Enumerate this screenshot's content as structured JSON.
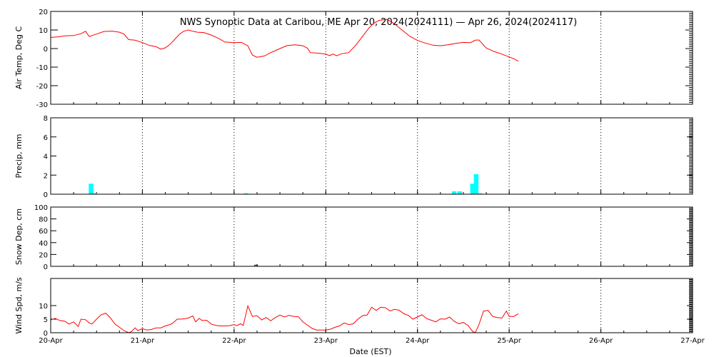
{
  "chart_data": {
    "type": "multi-panel",
    "title": "NWS Synoptic Data at Caribou, ME   Apr 20, 2024(2024111) — Apr 26, 2024(2024117)",
    "xlabel": "Date (EST)",
    "x_ticks": [
      "20-Apr",
      "21-Apr",
      "22-Apr",
      "23-Apr",
      "24-Apr",
      "25-Apr",
      "26-Apr",
      "27-Apr"
    ],
    "xlim": [
      0,
      7
    ],
    "x_unit": "days since 20-Apr 00:00 EST",
    "grid": "dotted vertical at day boundaries",
    "colors": {
      "line": "#ff0000",
      "precip": "#00ffff",
      "snow": "#00008b",
      "axis": "#000000",
      "grid": "#000000"
    },
    "panels": [
      {
        "id": "air-temp",
        "type": "line",
        "ylabel": "Air Temp, Deg C",
        "ylim": [
          -30,
          20
        ],
        "y_ticks": [
          20,
          10,
          0,
          -10,
          -20,
          -30
        ],
        "series": [
          {
            "color": "#ff0000",
            "points": [
              [
                0.0,
                6.0
              ],
              [
                0.08,
                6.3
              ],
              [
                0.15,
                6.8
              ],
              [
                0.25,
                7.0
              ],
              [
                0.33,
                8.0
              ],
              [
                0.38,
                9.3
              ],
              [
                0.42,
                6.5
              ],
              [
                0.5,
                7.8
              ],
              [
                0.58,
                9.2
              ],
              [
                0.67,
                9.4
              ],
              [
                0.75,
                8.8
              ],
              [
                0.8,
                7.8
              ],
              [
                0.85,
                4.8
              ],
              [
                0.92,
                4.5
              ],
              [
                1.0,
                3.2
              ],
              [
                1.08,
                1.6
              ],
              [
                1.15,
                1.0
              ],
              [
                1.2,
                -0.3
              ],
              [
                1.25,
                0.4
              ],
              [
                1.3,
                2.2
              ],
              [
                1.35,
                4.8
              ],
              [
                1.4,
                7.5
              ],
              [
                1.45,
                9.3
              ],
              [
                1.5,
                10.0
              ],
              [
                1.55,
                9.3
              ],
              [
                1.6,
                8.8
              ],
              [
                1.67,
                8.6
              ],
              [
                1.75,
                7.3
              ],
              [
                1.83,
                5.5
              ],
              [
                1.9,
                3.5
              ],
              [
                2.0,
                3.2
              ],
              [
                2.08,
                3.3
              ],
              [
                2.15,
                1.5
              ],
              [
                2.2,
                -3.5
              ],
              [
                2.25,
                -4.7
              ],
              [
                2.33,
                -4.0
              ],
              [
                2.4,
                -2.2
              ],
              [
                2.5,
                0.0
              ],
              [
                2.58,
                1.6
              ],
              [
                2.67,
                2.0
              ],
              [
                2.75,
                1.5
              ],
              [
                2.8,
                0.2
              ],
              [
                2.83,
                -2.2
              ],
              [
                2.92,
                -2.5
              ],
              [
                3.0,
                -3.0
              ],
              [
                3.04,
                -3.8
              ],
              [
                3.08,
                -3.0
              ],
              [
                3.12,
                -3.9
              ],
              [
                3.17,
                -2.8
              ],
              [
                3.25,
                -2.2
              ],
              [
                3.33,
                2.0
              ],
              [
                3.4,
                6.5
              ],
              [
                3.47,
                11.0
              ],
              [
                3.52,
                13.5
              ],
              [
                3.58,
                15.2
              ],
              [
                3.67,
                15.7
              ],
              [
                3.75,
                13.3
              ],
              [
                3.83,
                10.0
              ],
              [
                3.92,
                6.5
              ],
              [
                4.0,
                4.4
              ],
              [
                4.08,
                3.0
              ],
              [
                4.17,
                1.8
              ],
              [
                4.25,
                1.5
              ],
              [
                4.33,
                2.0
              ],
              [
                4.42,
                2.8
              ],
              [
                4.5,
                3.3
              ],
              [
                4.58,
                3.2
              ],
              [
                4.63,
                4.5
              ],
              [
                4.67,
                4.6
              ],
              [
                4.7,
                3.0
              ],
              [
                4.75,
                0.3
              ],
              [
                4.83,
                -1.5
              ],
              [
                4.92,
                -3.0
              ],
              [
                5.0,
                -4.5
              ],
              [
                5.05,
                -5.5
              ],
              [
                5.1,
                -6.8
              ]
            ]
          }
        ]
      },
      {
        "id": "precip",
        "type": "bar",
        "ylabel": "Precip, mm",
        "ylim": [
          0,
          8
        ],
        "y_ticks": [
          8,
          6,
          4,
          2,
          0
        ],
        "bar_width": 0.05,
        "bars": [
          [
            0.44,
            1.1
          ],
          [
            0.48,
            0.1
          ],
          [
            2.13,
            0.1
          ],
          [
            4.4,
            0.3
          ],
          [
            4.46,
            0.3
          ],
          [
            4.6,
            1.1
          ],
          [
            4.64,
            2.1
          ],
          [
            4.68,
            0.1
          ]
        ]
      },
      {
        "id": "snow-depth",
        "type": "bar",
        "ylabel": "Snow Dep, cm",
        "ylim": [
          0,
          100
        ],
        "y_ticks": [
          100,
          80,
          60,
          40,
          20,
          0
        ],
        "bar_width": 0.03,
        "bars": [
          [
            2.24,
            2
          ]
        ]
      },
      {
        "id": "wind-speed",
        "type": "line",
        "ylabel": "Wind Spd, m/s",
        "ylim": [
          0,
          20
        ],
        "y_ticks": [
          10,
          5,
          0
        ],
        "series": [
          {
            "color": "#ff0000",
            "points": [
              [
                0.0,
                4.7
              ],
              [
                0.05,
                5.3
              ],
              [
                0.1,
                4.5
              ],
              [
                0.15,
                4.3
              ],
              [
                0.2,
                3.2
              ],
              [
                0.25,
                4.0
              ],
              [
                0.3,
                2.3
              ],
              [
                0.33,
                5.0
              ],
              [
                0.38,
                4.8
              ],
              [
                0.42,
                3.6
              ],
              [
                0.45,
                3.2
              ],
              [
                0.5,
                5.0
              ],
              [
                0.55,
                6.6
              ],
              [
                0.6,
                7.2
              ],
              [
                0.65,
                5.5
              ],
              [
                0.7,
                3.2
              ],
              [
                0.75,
                2.0
              ],
              [
                0.8,
                0.8
              ],
              [
                0.85,
                0.0
              ],
              [
                0.88,
                0.4
              ],
              [
                0.92,
                1.8
              ],
              [
                0.95,
                0.8
              ],
              [
                1.0,
                1.5
              ],
              [
                1.05,
                1.0
              ],
              [
                1.1,
                1.2
              ],
              [
                1.15,
                1.8
              ],
              [
                1.2,
                1.8
              ],
              [
                1.25,
                2.5
              ],
              [
                1.3,
                3.0
              ],
              [
                1.33,
                3.5
              ],
              [
                1.38,
                5.0
              ],
              [
                1.42,
                5.0
              ],
              [
                1.47,
                5.2
              ],
              [
                1.5,
                5.4
              ],
              [
                1.55,
                6.2
              ],
              [
                1.58,
                4.0
              ],
              [
                1.62,
                5.3
              ],
              [
                1.65,
                4.5
              ],
              [
                1.7,
                4.6
              ],
              [
                1.75,
                3.2
              ],
              [
                1.8,
                2.7
              ],
              [
                1.85,
                2.5
              ],
              [
                1.9,
                2.5
              ],
              [
                1.95,
                2.6
              ],
              [
                2.0,
                3.0
              ],
              [
                2.03,
                2.6
              ],
              [
                2.07,
                3.3
              ],
              [
                2.1,
                2.7
              ],
              [
                2.15,
                9.9
              ],
              [
                2.2,
                6.0
              ],
              [
                2.25,
                6.3
              ],
              [
                2.3,
                4.7
              ],
              [
                2.35,
                5.6
              ],
              [
                2.4,
                4.4
              ],
              [
                2.45,
                5.6
              ],
              [
                2.5,
                6.5
              ],
              [
                2.55,
                5.8
              ],
              [
                2.6,
                6.4
              ],
              [
                2.65,
                6.0
              ],
              [
                2.7,
                5.9
              ],
              [
                2.75,
                4.0
              ],
              [
                2.8,
                2.8
              ],
              [
                2.85,
                1.6
              ],
              [
                2.9,
                1.0
              ],
              [
                2.95,
                1.0
              ],
              [
                3.0,
                1.0
              ],
              [
                3.05,
                1.3
              ],
              [
                3.1,
                2.0
              ],
              [
                3.15,
                2.5
              ],
              [
                3.2,
                3.6
              ],
              [
                3.25,
                3.0
              ],
              [
                3.3,
                3.3
              ],
              [
                3.35,
                5.0
              ],
              [
                3.4,
                6.3
              ],
              [
                3.45,
                6.5
              ],
              [
                3.5,
                9.4
              ],
              [
                3.55,
                8.2
              ],
              [
                3.6,
                9.4
              ],
              [
                3.65,
                9.2
              ],
              [
                3.7,
                8.0
              ],
              [
                3.75,
                8.6
              ],
              [
                3.8,
                8.3
              ],
              [
                3.85,
                7.0
              ],
              [
                3.9,
                6.4
              ],
              [
                3.95,
                5.0
              ],
              [
                4.0,
                5.8
              ],
              [
                4.05,
                6.6
              ],
              [
                4.1,
                5.2
              ],
              [
                4.15,
                4.6
              ],
              [
                4.2,
                4.0
              ],
              [
                4.25,
                5.1
              ],
              [
                4.3,
                5.0
              ],
              [
                4.35,
                5.8
              ],
              [
                4.4,
                4.2
              ],
              [
                4.45,
                3.3
              ],
              [
                4.5,
                3.8
              ],
              [
                4.55,
                2.7
              ],
              [
                4.6,
                0.5
              ],
              [
                4.63,
                0.0
              ],
              [
                4.67,
                3.0
              ],
              [
                4.72,
                8.0
              ],
              [
                4.77,
                8.2
              ],
              [
                4.82,
                6.0
              ],
              [
                4.87,
                5.6
              ],
              [
                4.92,
                5.4
              ],
              [
                4.97,
                8.0
              ],
              [
                5.0,
                6.0
              ],
              [
                5.05,
                6.0
              ],
              [
                5.1,
                7.0
              ]
            ]
          }
        ]
      }
    ]
  }
}
